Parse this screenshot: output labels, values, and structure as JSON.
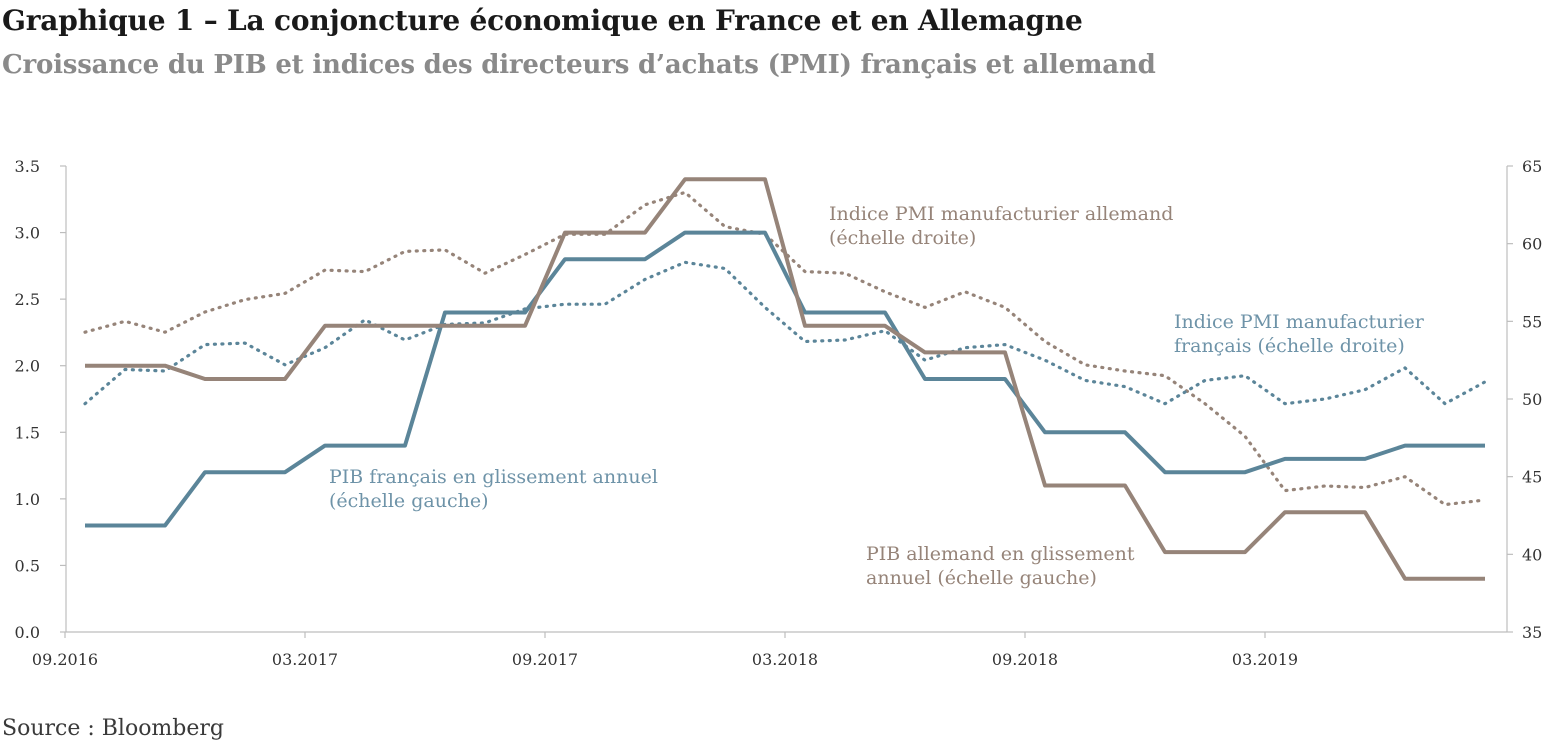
{
  "header": {
    "title": "Graphique 1 – La conjoncture économique en France et en Allemagne",
    "subtitle": "Croissance du PIB et indices des directeurs d’achats (PMI) français et allemand"
  },
  "source": "Source : Bloomberg",
  "colors": {
    "fr": "#5b8599",
    "de": "#968479",
    "axis": "#bdbdbd",
    "annot_fr": "#6e93a8",
    "annot_de": "#968479"
  },
  "chart_data": {
    "type": "line",
    "x": [
      "2016-09",
      "2016-10",
      "2016-11",
      "2016-12",
      "2017-01",
      "2017-02",
      "2017-03",
      "2017-04",
      "2017-05",
      "2017-06",
      "2017-07",
      "2017-08",
      "2017-09",
      "2017-10",
      "2017-11",
      "2017-12",
      "2018-01",
      "2018-02",
      "2018-03",
      "2018-04",
      "2018-05",
      "2018-06",
      "2018-07",
      "2018-08",
      "2018-09",
      "2018-10",
      "2018-11",
      "2018-12",
      "2019-01",
      "2019-02",
      "2019-03",
      "2019-04",
      "2019-05",
      "2019-06",
      "2019-07",
      "2019-08"
    ],
    "x_tick_labels": [
      {
        "x": "2016-09",
        "label": "09.2016"
      },
      {
        "x": "2017-03",
        "label": "03.2017"
      },
      {
        "x": "2017-09",
        "label": "09.2017"
      },
      {
        "x": "2018-03",
        "label": "03.2018"
      },
      {
        "x": "2018-09",
        "label": "09.2018"
      },
      {
        "x": "2019-03",
        "label": "03.2019"
      }
    ],
    "y_left": {
      "range": [
        0,
        3.5
      ],
      "ticks": [
        "0.0",
        "0.5",
        "1.0",
        "1.5",
        "2.0",
        "2.5",
        "3.0",
        "3.5"
      ]
    },
    "y_right": {
      "range": [
        35,
        65
      ],
      "ticks": [
        "35",
        "40",
        "45",
        "50",
        "55",
        "60",
        "65"
      ]
    },
    "grid": false,
    "series": [
      {
        "key": "pib_fr",
        "axis": "left",
        "style": "solid",
        "values": [
          0.8,
          0.8,
          0.8,
          1.2,
          1.2,
          1.2,
          1.4,
          1.4,
          1.4,
          2.4,
          2.4,
          2.4,
          2.8,
          2.8,
          2.8,
          3.0,
          3.0,
          3.0,
          2.4,
          2.4,
          2.4,
          1.9,
          1.9,
          1.9,
          1.5,
          1.5,
          1.5,
          1.2,
          1.2,
          1.2,
          1.3,
          1.3,
          1.3,
          1.4,
          1.4,
          1.4
        ]
      },
      {
        "key": "pib_de",
        "axis": "left",
        "style": "solid",
        "values": [
          2.0,
          2.0,
          2.0,
          1.9,
          1.9,
          1.9,
          2.3,
          2.3,
          2.3,
          2.3,
          2.3,
          2.3,
          3.0,
          3.0,
          3.0,
          3.4,
          3.4,
          3.4,
          2.3,
          2.3,
          2.3,
          2.1,
          2.1,
          2.1,
          1.1,
          1.1,
          1.1,
          0.6,
          0.6,
          0.6,
          0.9,
          0.9,
          0.9,
          0.4,
          0.4,
          0.4
        ]
      },
      {
        "key": "pmi_fr",
        "axis": "right",
        "style": "dotted",
        "values": [
          49.7,
          51.9,
          51.8,
          53.5,
          53.6,
          52.2,
          53.3,
          55.1,
          53.8,
          54.8,
          54.9,
          55.8,
          56.1,
          56.1,
          57.7,
          58.8,
          58.4,
          55.9,
          53.7,
          53.8,
          54.4,
          52.5,
          53.3,
          53.5,
          52.5,
          51.2,
          50.8,
          49.7,
          51.2,
          51.5,
          49.7,
          50.0,
          50.6,
          52.0,
          49.7,
          51.1
        ]
      },
      {
        "key": "pmi_de",
        "axis": "right",
        "style": "dotted",
        "values": [
          54.3,
          55.0,
          54.3,
          55.6,
          56.4,
          56.8,
          58.3,
          58.2,
          59.5,
          59.6,
          58.1,
          59.3,
          60.6,
          60.6,
          62.5,
          63.3,
          61.1,
          60.6,
          58.2,
          58.1,
          56.9,
          55.9,
          56.9,
          55.9,
          53.7,
          52.2,
          51.8,
          51.5,
          49.7,
          47.6,
          44.1,
          44.4,
          44.3,
          45.0,
          43.2,
          43.5
        ]
      }
    ],
    "annotations": [
      {
        "key": "pmi_de",
        "lines": [
          "Indice PMI manufacturier allemand",
          "(échelle droite)"
        ]
      },
      {
        "key": "pmi_fr",
        "lines": [
          "Indice PMI manufacturier",
          "français (échelle droite)"
        ]
      },
      {
        "key": "pib_fr",
        "lines": [
          "PIB français en glissement annuel",
          "(échelle gauche)"
        ]
      },
      {
        "key": "pib_de",
        "lines": [
          "PIB allemand en glissement",
          "annuel (échelle gauche)"
        ]
      }
    ]
  }
}
